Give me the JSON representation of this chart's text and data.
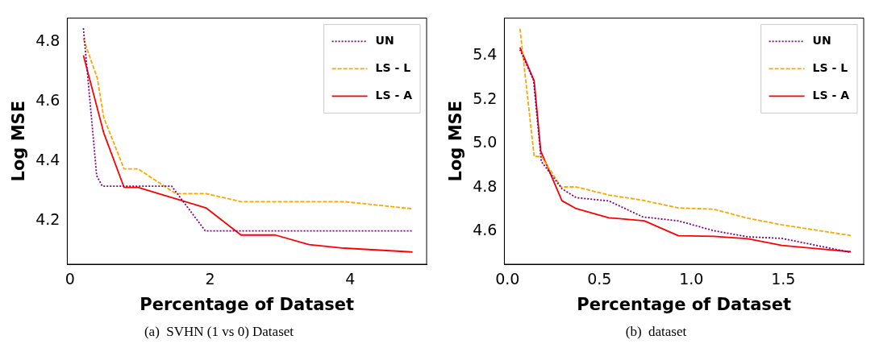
{
  "chart_data": [
    {
      "type": "line",
      "xlabel": "Percentage of Dataset",
      "ylabel": "Log MSE",
      "xlim": [
        -0.04,
        5.09
      ],
      "ylim": [
        4.053,
        4.879
      ],
      "xticks": [
        0,
        2,
        4
      ],
      "yticks": [
        4.2,
        4.4,
        4.6,
        4.8
      ],
      "grid": false,
      "legend": "top right",
      "marker": "none",
      "annotations": [
        "(a)  SVHN (1 vs 0) Dataset"
      ],
      "series": [
        {
          "name": "UN",
          "color": "#800080",
          "line_style": "dotted",
          "x": [
            0.19,
            0.38,
            0.46,
            1.45,
            1.93,
            4.89
          ],
          "values": [
            4.845,
            4.35,
            4.315,
            4.315,
            4.165,
            4.165
          ]
        },
        {
          "name": "LS - L",
          "color": "#ffa500",
          "line_style": "dashed",
          "x": [
            0.19,
            0.39,
            0.48,
            0.77,
            0.97,
            1.51,
            1.94,
            2.44,
            3.91,
            4.89
          ],
          "values": [
            4.81,
            4.676,
            4.546,
            4.373,
            4.373,
            4.29,
            4.29,
            4.263,
            4.263,
            4.239
          ]
        },
        {
          "name": "LS - A",
          "color": "#ff0000",
          "line_style": "solid",
          "x": [
            0.19,
            0.48,
            0.77,
            0.97,
            1.94,
            2.44,
            2.93,
            3.41,
            3.91,
            4.89
          ],
          "values": [
            4.754,
            4.494,
            4.311,
            4.311,
            4.242,
            4.151,
            4.151,
            4.119,
            4.107,
            4.094
          ]
        }
      ]
    },
    {
      "type": "line",
      "xlabel": "Percentage of Dataset",
      "ylabel": "Log MSE",
      "xlim": [
        -0.017,
        1.937
      ],
      "ylim": [
        4.449,
        5.573
      ],
      "xticks": [
        {
          "value": 0,
          "label": "0.0"
        },
        0.5,
        {
          "value": 1,
          "label": "1.0"
        },
        1.5
      ],
      "yticks": [
        4.6,
        4.8,
        {
          "value": 5,
          "label": "5.0"
        },
        5.2,
        5.4
      ],
      "grid": false,
      "legend": "top right",
      "marker": "none",
      "annotations": [
        "(b)  dataset"
      ],
      "series": [
        {
          "name": "UN",
          "color": "#800080",
          "line_style": "dotted",
          "x": [
            0.068,
            0.142,
            0.184,
            0.296,
            0.373,
            0.551,
            0.736,
            0.929,
            1.122,
            1.307,
            1.492,
            1.867
          ],
          "values": [
            5.429,
            5.288,
            4.918,
            4.794,
            4.753,
            4.738,
            4.665,
            4.647,
            4.602,
            4.574,
            4.567,
            4.503
          ]
        },
        {
          "name": "LS - L",
          "color": "#ffa500",
          "line_style": "dashed",
          "x": [
            0.068,
            0.145,
            0.184,
            0.292,
            0.373,
            0.551,
            0.736,
            0.929,
            1.122,
            1.307,
            1.492,
            1.867
          ],
          "values": [
            5.524,
            4.941,
            4.941,
            4.802,
            4.802,
            4.765,
            4.741,
            4.706,
            4.7,
            4.659,
            4.629,
            4.58
          ]
        },
        {
          "name": "LS - A",
          "color": "#ff0000",
          "line_style": "solid",
          "x": [
            0.068,
            0.145,
            0.181,
            0.296,
            0.373,
            0.551,
            0.744,
            0.929,
            1.122,
            1.307,
            1.492,
            1.867
          ],
          "values": [
            5.439,
            5.286,
            4.965,
            4.739,
            4.703,
            4.661,
            4.647,
            4.579,
            4.576,
            4.565,
            4.535,
            4.506
          ]
        }
      ]
    }
  ]
}
